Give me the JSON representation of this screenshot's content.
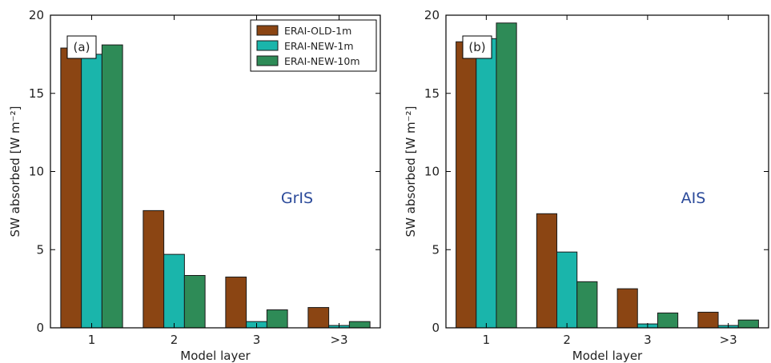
{
  "chart_data": [
    {
      "type": "bar",
      "panel_tag": "(a)",
      "region": "GrIS",
      "categories": [
        "1",
        "2",
        "3",
        ">3"
      ],
      "series": [
        {
          "name": "ERAI-OLD-1m",
          "color": "#8b4513",
          "values": [
            17.9,
            7.5,
            3.25,
            1.3
          ]
        },
        {
          "name": "ERAI-NEW-1m",
          "color": "#1ab5ab",
          "values": [
            17.5,
            4.7,
            0.4,
            0.15
          ]
        },
        {
          "name": "ERAI-NEW-10m",
          "color": "#2e8b57",
          "values": [
            18.1,
            3.35,
            1.15,
            0.4
          ]
        }
      ],
      "xlabel": "Model layer",
      "ylabel": "SW absorbed [W m⁻²]",
      "ylim": [
        0,
        20
      ],
      "yticks": [
        "0",
        "5",
        "10",
        "15",
        "20"
      ],
      "legend": "top-right",
      "grid": false
    },
    {
      "type": "bar",
      "panel_tag": "(b)",
      "region": "AIS",
      "categories": [
        "1",
        "2",
        "3",
        ">3"
      ],
      "series": [
        {
          "name": "ERAI-OLD-1m",
          "color": "#8b4513",
          "values": [
            18.3,
            7.3,
            2.5,
            1.0
          ]
        },
        {
          "name": "ERAI-NEW-1m",
          "color": "#1ab5ab",
          "values": [
            18.5,
            4.85,
            0.25,
            0.15
          ]
        },
        {
          "name": "ERAI-NEW-10m",
          "color": "#2e8b57",
          "values": [
            19.5,
            2.95,
            0.95,
            0.5
          ]
        }
      ],
      "xlabel": "Model layer",
      "ylabel": "SW absorbed [W m⁻²]",
      "ylim": [
        0,
        20
      ],
      "yticks": [
        "0",
        "5",
        "10",
        "15",
        "20"
      ],
      "legend": "none",
      "grid": false
    }
  ]
}
